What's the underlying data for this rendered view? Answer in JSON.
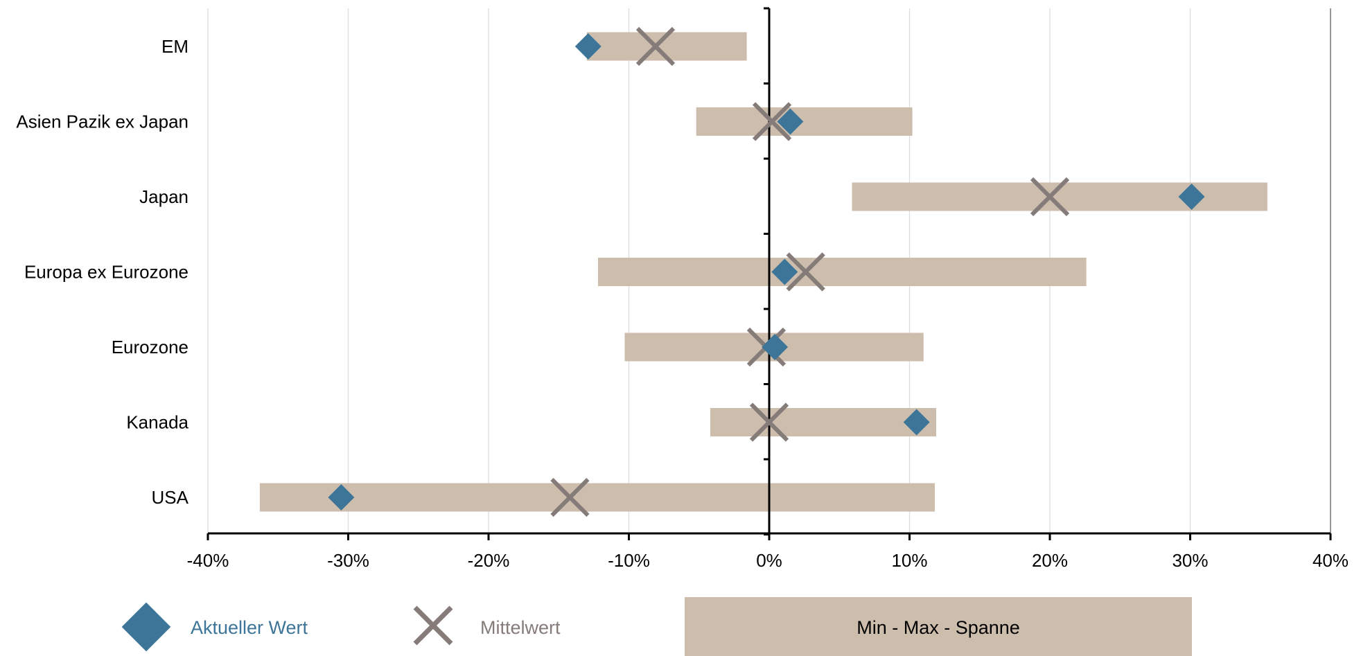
{
  "chart_data": {
    "type": "range-dot",
    "categories": [
      "EM",
      "Asien Pazik ex Japan",
      "Japan",
      "Europa ex Eurozone",
      "Eurozone",
      "Kanada",
      "USA"
    ],
    "series": [
      {
        "name": "Min - Max - Spanne",
        "kind": "range",
        "min": [
          -13,
          -5.2,
          5.9,
          -12.2,
          -10.3,
          -4.2,
          -36.3
        ],
        "max": [
          -1.6,
          10.2,
          35.5,
          22.6,
          11.0,
          11.9,
          11.8
        ]
      },
      {
        "name": "Aktueller Wert",
        "kind": "diamond",
        "values": [
          -12.9,
          1.5,
          30.1,
          1.1,
          0.4,
          10.5,
          -30.5
        ]
      },
      {
        "name": "Mittelwert",
        "kind": "x-marker",
        "values": [
          -8.1,
          0.2,
          20.0,
          2.6,
          -0.2,
          0.0,
          -14.2
        ]
      }
    ],
    "xlim": [
      -40,
      40
    ],
    "xticks": [
      "-40%",
      "-30%",
      "-20%",
      "-10%",
      "0%",
      "10%",
      "20%",
      "30%",
      "40%"
    ],
    "xtick_values": [
      -40,
      -30,
      -20,
      -10,
      0,
      10,
      20,
      30,
      40
    ],
    "grid": "vertical",
    "legend": "bottom",
    "colors": {
      "range": "#cdbdad",
      "diamond": "#3d7599",
      "x-marker": "#857c79",
      "axis": "#000000",
      "grid": "#dddddd"
    }
  }
}
